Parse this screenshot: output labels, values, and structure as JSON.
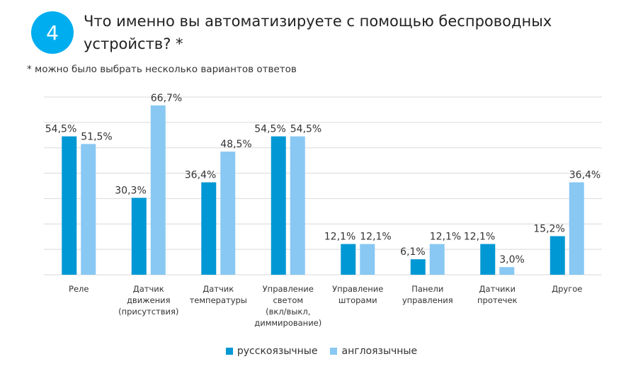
{
  "header": {
    "number": "4",
    "title": "Что именно вы автоматизируете с помощью беспроводных устройств? *",
    "note": "* можно было выбрать несколько вариантов ответов"
  },
  "chart_data": {
    "type": "bar",
    "categories": [
      [
        "Реле"
      ],
      [
        "Датчик",
        "движения",
        "(присутствия)"
      ],
      [
        "Датчик",
        "температуры"
      ],
      [
        "Управление",
        "светом",
        "(вкл/выкл,",
        "диммирование)"
      ],
      [
        "Управление",
        "шторами"
      ],
      [
        "Панели",
        "управления"
      ],
      [
        "Датчики",
        "протечек"
      ],
      [
        "Другое"
      ]
    ],
    "series": [
      {
        "name": "русскоязычные",
        "color": "#0098D4",
        "values": [
          54.5,
          30.3,
          36.4,
          54.5,
          12.1,
          6.1,
          12.1,
          15.2
        ],
        "labels": [
          "54,5%",
          "30,3%",
          "36,4%",
          "54,5%",
          "12,1%",
          "6,1%",
          "12,1%",
          "15,2%"
        ]
      },
      {
        "name": "англоязычные",
        "color": "#88C8F3",
        "values": [
          51.5,
          66.7,
          48.5,
          54.5,
          12.1,
          12.1,
          3.0,
          36.4
        ],
        "labels": [
          "51,5%",
          "66,7%",
          "48,5%",
          "54,5%",
          "12,1%",
          "12,1%",
          "3,0%",
          "36,4%"
        ]
      }
    ],
    "ylim": [
      0,
      70
    ],
    "grid": true,
    "legend": "bottom"
  }
}
